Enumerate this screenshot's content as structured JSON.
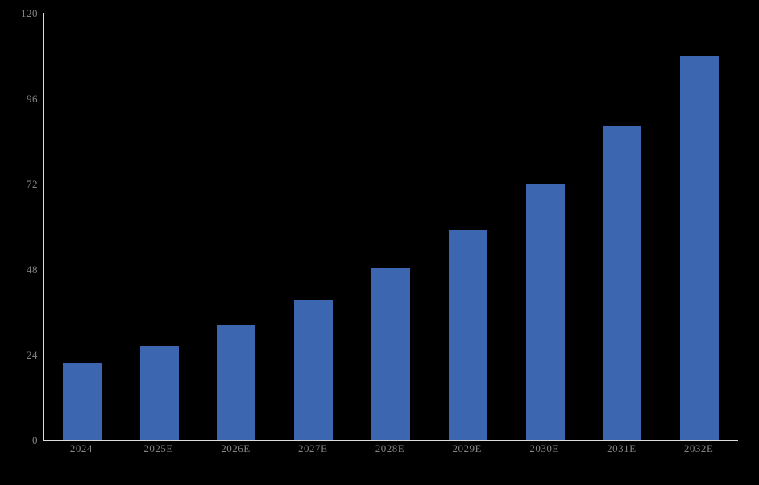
{
  "chart_data": {
    "type": "bar",
    "title": "",
    "categories": [
      "2024",
      "2025E",
      "2026E",
      "2027E",
      "2028E",
      "2029E",
      "2030E",
      "2031E",
      "2032E"
    ],
    "values": [
      21.5,
      26.4,
      32.4,
      39.4,
      48.2,
      58.9,
      72.0,
      88.1,
      107.8
    ],
    "xlabel": "",
    "ylabel": "",
    "ylim": [
      0,
      120
    ],
    "yticks": [
      0,
      24,
      48,
      72,
      96,
      120
    ],
    "grid": false,
    "legend": false,
    "colors": {
      "bar": "#3C66B0",
      "axis_line": "#DCDCDC",
      "tick_label": "#848484",
      "background": "#000000"
    }
  }
}
